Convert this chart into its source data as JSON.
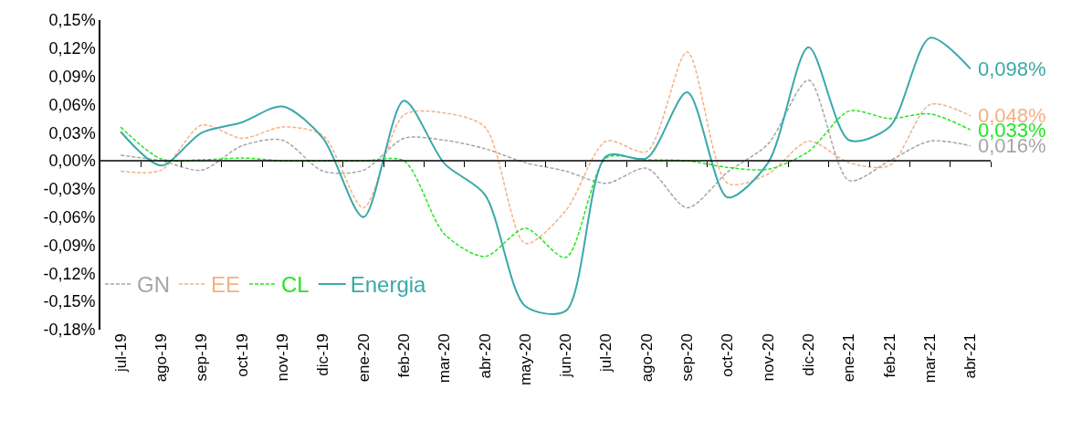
{
  "chart_data": {
    "type": "line",
    "categories": [
      "jul-19",
      "ago-19",
      "sep-19",
      "oct-19",
      "nov-19",
      "dic-19",
      "ene-20",
      "feb-20",
      "mar-20",
      "abr-20",
      "may-20",
      "jun-20",
      "jul-20",
      "ago-20",
      "sep-20",
      "oct-20",
      "nov-20",
      "dic-20",
      "ene-21",
      "feb-21",
      "mar-21",
      "abr-21"
    ],
    "series": [
      {
        "name": "GN",
        "color": "#a6a6a6",
        "line_style": "dashed",
        "values": [
          0.006,
          0.0,
          -0.01,
          0.016,
          0.022,
          -0.011,
          -0.01,
          0.024,
          0.022,
          0.013,
          -0.002,
          -0.011,
          -0.024,
          -0.008,
          -0.05,
          -0.012,
          0.018,
          0.086,
          -0.021,
          0.0,
          0.021,
          0.016
        ]
      },
      {
        "name": "EE",
        "color": "#f4b183",
        "line_style": "dashed",
        "values": [
          -0.011,
          -0.01,
          0.038,
          0.024,
          0.036,
          0.027,
          -0.05,
          0.049,
          0.051,
          0.036,
          -0.088,
          -0.053,
          0.021,
          0.01,
          0.116,
          -0.024,
          -0.014,
          0.021,
          -0.002,
          -0.005,
          0.06,
          0.048
        ]
      },
      {
        "name": "CL",
        "color": "#22e622",
        "line_style": "dashed",
        "values": [
          0.036,
          0.002,
          0.001,
          0.003,
          0.0,
          0.0,
          0.0,
          0.0,
          -0.078,
          -0.102,
          -0.072,
          -0.103,
          0.003,
          0.001,
          0.0,
          -0.007,
          -0.009,
          0.01,
          0.053,
          0.045,
          0.05,
          0.033
        ]
      },
      {
        "name": "Energia",
        "color": "#3aa8a8",
        "line_style": "solid",
        "values": [
          0.031,
          -0.005,
          0.03,
          0.041,
          0.058,
          0.024,
          -0.06,
          0.064,
          -0.003,
          -0.036,
          -0.155,
          -0.16,
          0.005,
          0.003,
          0.073,
          -0.039,
          -0.002,
          0.121,
          0.022,
          0.036,
          0.131,
          0.098
        ]
      }
    ],
    "ylim": [
      -0.18,
      0.15
    ],
    "yticks": [
      {
        "value": -0.18,
        "label": "-0,18%"
      },
      {
        "value": -0.15,
        "label": "-0,15%"
      },
      {
        "value": -0.12,
        "label": "-0,12%"
      },
      {
        "value": -0.09,
        "label": "-0,09%"
      },
      {
        "value": -0.06,
        "label": "-0,06%"
      },
      {
        "value": -0.03,
        "label": "-0,03%"
      },
      {
        "value": 0,
        "label": "0,00%"
      },
      {
        "value": 0.03,
        "label": "0,03%"
      },
      {
        "value": 0.06,
        "label": "0,06%"
      },
      {
        "value": 0.09,
        "label": "0,09%"
      },
      {
        "value": 0.12,
        "label": "0,12%"
      },
      {
        "value": 0.15,
        "label": "0,15%"
      }
    ],
    "annotations": [
      {
        "text": "0,098%",
        "x": "abr-21",
        "y": 0.098
      },
      {
        "text": "0,048%",
        "x": "abr-21",
        "y": 0.048
      },
      {
        "text": "0,033%",
        "x": "abr-21",
        "y": 0.033
      },
      {
        "text": "0,016%",
        "x": "abr-21",
        "y": 0.016
      }
    ],
    "ref_lines": [
      {
        "axis": "y",
        "value": 0,
        "color": "#000000"
      }
    ],
    "legend": "bottom left",
    "marker": "none"
  }
}
